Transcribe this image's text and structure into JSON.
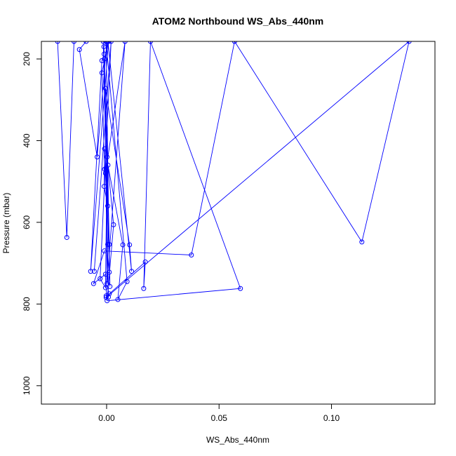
{
  "chart_data": {
    "type": "line",
    "title": "ATOM2 Northbound WS_Abs_440nm",
    "xlabel": "WS_Abs_440nm",
    "ylabel": "Pressure (mbar)",
    "xlim": [
      -0.029,
      0.146
    ],
    "ylim": [
      1045,
      157
    ],
    "y_reversed": true,
    "grid": false,
    "legend": "none",
    "color": "#0000ff",
    "x_ticks": [
      {
        "value": 0.0,
        "label": "0.00"
      },
      {
        "value": 0.05,
        "label": "0.05"
      },
      {
        "value": 0.1,
        "label": "0.10"
      }
    ],
    "y_ticks": [
      {
        "value": 200,
        "label": "200"
      },
      {
        "value": 400,
        "label": "400"
      },
      {
        "value": 600,
        "label": "600"
      },
      {
        "value": 800,
        "label": "800"
      },
      {
        "value": 1000,
        "label": "1000"
      }
    ],
    "series": [
      {
        "x": [
          -0.0218,
          -0.0177,
          -0.0145,
          -0.0091,
          -0.0121,
          -0.0042,
          0.0001,
          -0.0012,
          -0.0011,
          -0.0021,
          -0.0071,
          0.0009,
          -0.0021,
          -0.0009,
          -0.0009,
          -0.0011,
          0.0005,
          -0.0002,
          -0.0015,
          0.0012,
          -0.0005,
          0.0102,
          0.0111,
          0.0006,
          -0.0009,
          0.0002,
          0.0082,
          -0.0005,
          0.0005,
          -0.0002,
          0.0012,
          0.0172,
          0.0165,
          0.0195,
          0.0595,
          0.0002,
          0.0031,
          0.0006,
          0.0072,
          0.005,
          0.0091,
          -0.0002,
          0.0012,
          -0.0005,
          -0.0058,
          -0.001,
          0.0377,
          0.0569,
          0.1135,
          0.1345,
          -0.0002,
          0.0008,
          -0.0002,
          0.0015,
          0.0002,
          -0.0005,
          -0.0029,
          0.002,
          -0.0055
        ],
        "y": [
          157,
          637,
          157,
          157,
          177,
          440,
          157,
          170,
          188,
          204,
          720,
          157,
          234,
          470,
          420,
          512,
          560,
          468,
          157,
          654,
          272,
          655,
          720,
          157,
          200,
          750,
          157,
          480,
          654,
          780,
          775,
          697,
          762,
          157,
          762,
          792,
          606,
          460,
          655,
          789,
          745,
          157,
          722,
          727,
          750,
          670,
          680,
          157,
          648,
          157,
          784,
          783,
          470,
          757,
          440,
          760,
          738,
          157,
          720
        ]
      }
    ]
  }
}
